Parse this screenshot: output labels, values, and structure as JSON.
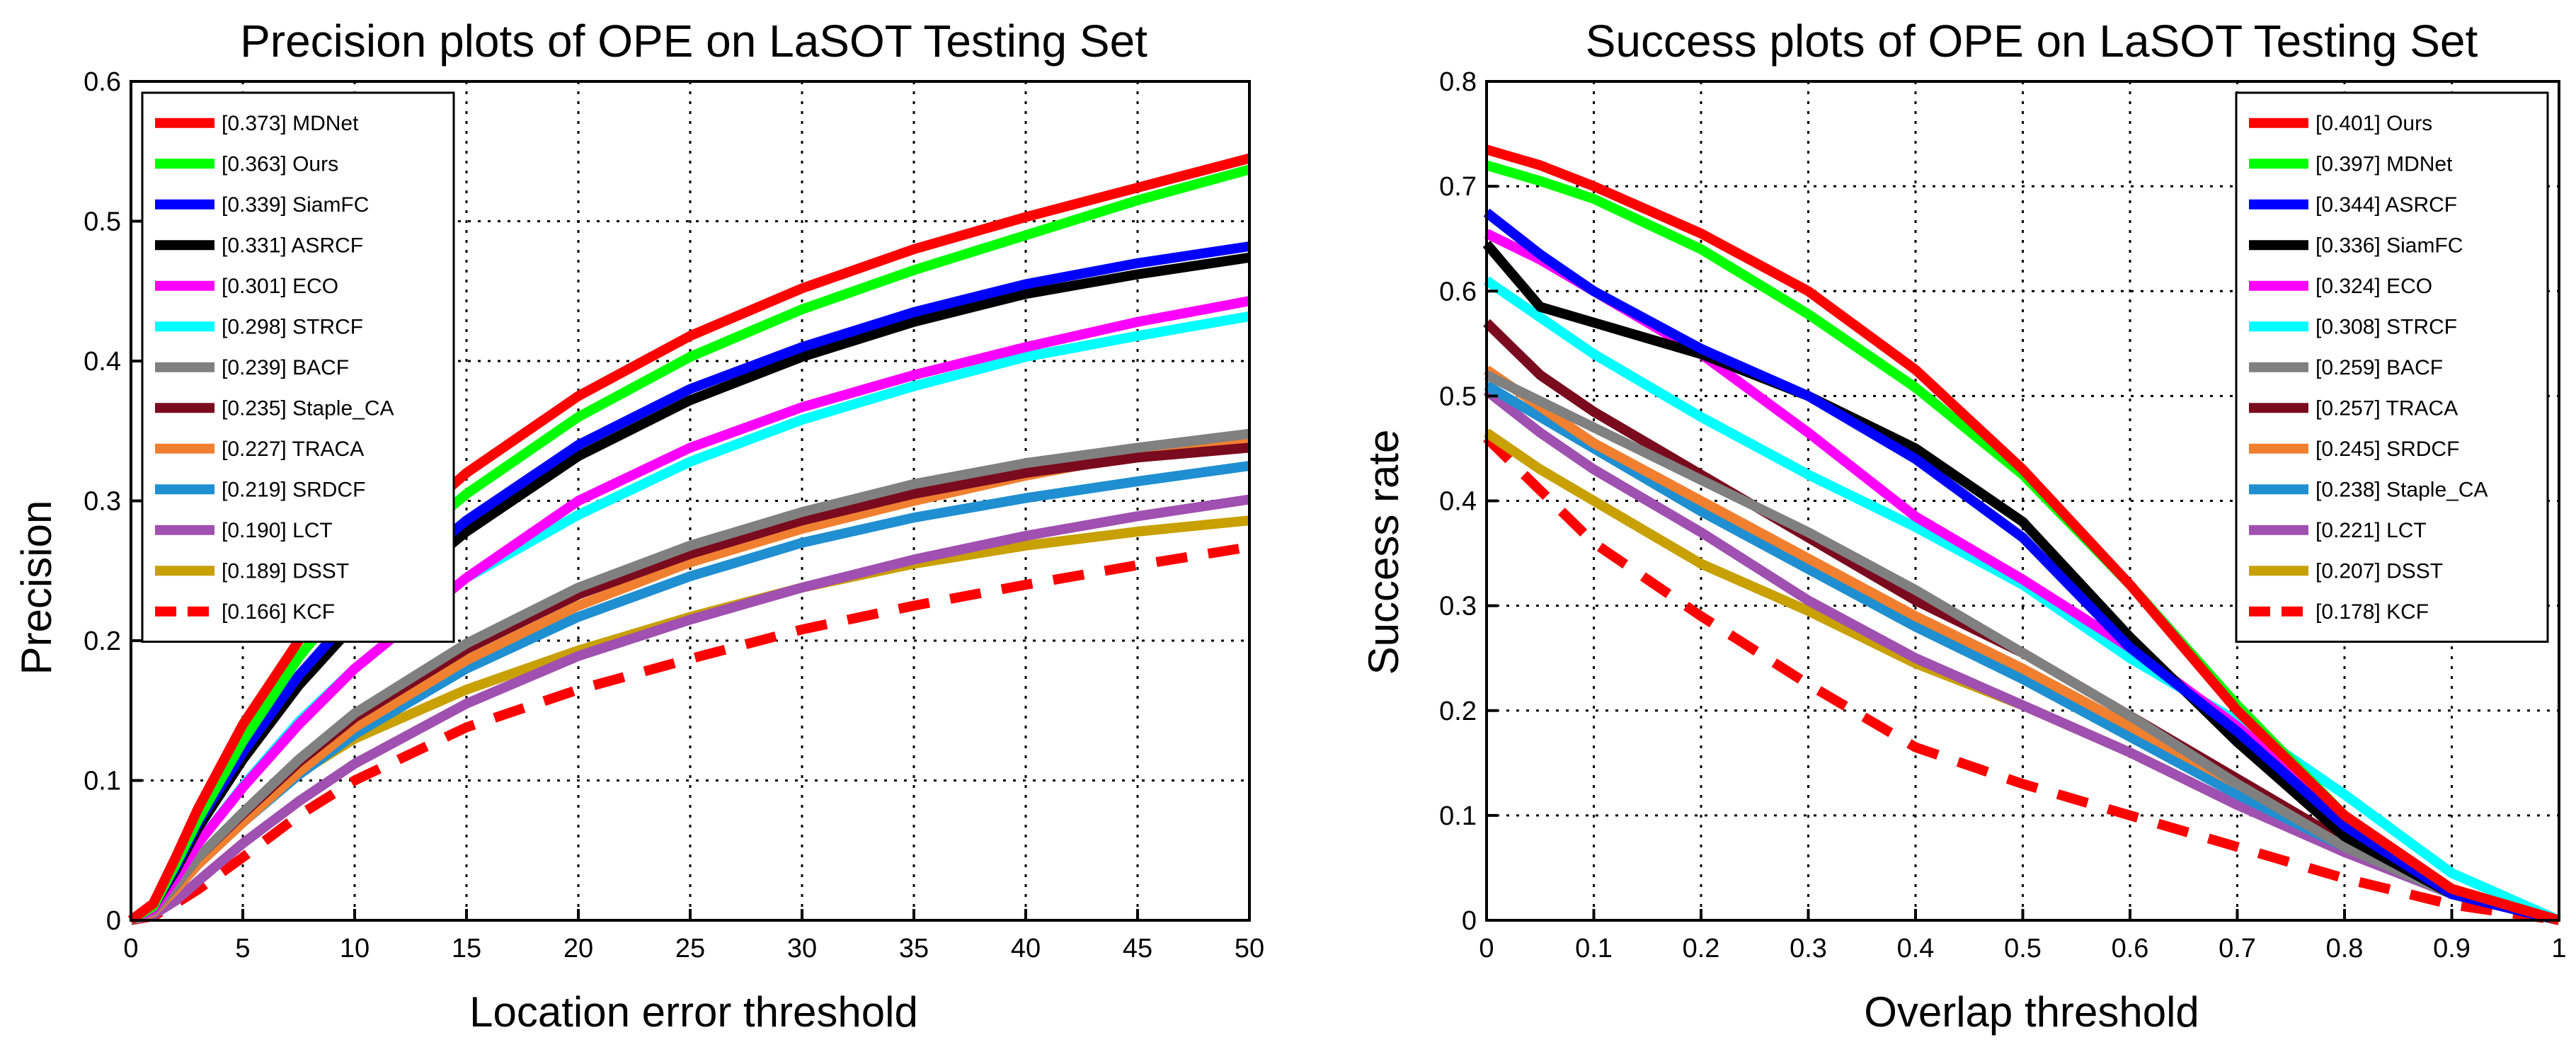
{
  "chart_data": [
    {
      "type": "line",
      "title": "Precision plots of OPE on LaSOT Testing Set",
      "xlabel": "Location error threshold",
      "ylabel": "Precision",
      "xlim": [
        0,
        50
      ],
      "ylim": [
        0,
        0.6
      ],
      "xticks": [
        "0",
        "5",
        "10",
        "15",
        "20",
        "25",
        "30",
        "35",
        "40",
        "45",
        "50"
      ],
      "yticks": [
        "0",
        "0.1",
        "0.2",
        "0.3",
        "0.4",
        "0.5",
        "0.6"
      ],
      "grid": true,
      "legend_position": "top-left",
      "x": [
        0,
        1,
        2,
        3,
        5,
        7.5,
        10,
        15,
        20,
        25,
        30,
        35,
        40,
        45,
        50
      ],
      "series": [
        {
          "name": "MDNet",
          "legend": "[0.373] MDNet",
          "color": "#ff0000",
          "dash": false,
          "values": [
            0,
            0.012,
            0.045,
            0.08,
            0.14,
            0.2,
            0.25,
            0.32,
            0.375,
            0.418,
            0.452,
            0.48,
            0.503,
            0.524,
            0.545
          ]
        },
        {
          "name": "Ours",
          "legend": "[0.363] Ours",
          "color": "#00ff00",
          "dash": false,
          "values": [
            0,
            0.01,
            0.04,
            0.072,
            0.128,
            0.188,
            0.238,
            0.305,
            0.36,
            0.403,
            0.437,
            0.465,
            0.49,
            0.515,
            0.537
          ]
        },
        {
          "name": "SiamFC",
          "legend": "[0.339] SiamFC",
          "color": "#0000ff",
          "dash": false,
          "values": [
            0,
            0.01,
            0.038,
            0.07,
            0.12,
            0.175,
            0.22,
            0.286,
            0.34,
            0.38,
            0.41,
            0.435,
            0.455,
            0.47,
            0.482
          ]
        },
        {
          "name": "ASRCF",
          "legend": "[0.331] ASRCF",
          "color": "#000000",
          "dash": false,
          "values": [
            0,
            0.01,
            0.036,
            0.066,
            0.115,
            0.168,
            0.212,
            0.278,
            0.332,
            0.372,
            0.403,
            0.428,
            0.448,
            0.462,
            0.474
          ]
        },
        {
          "name": "ECO",
          "legend": "[0.301] ECO",
          "color": "#ff00ff",
          "dash": false,
          "values": [
            0,
            0.008,
            0.03,
            0.055,
            0.095,
            0.14,
            0.18,
            0.245,
            0.3,
            0.338,
            0.367,
            0.39,
            0.41,
            0.428,
            0.443
          ]
        },
        {
          "name": "STRCF",
          "legend": "[0.298] STRCF",
          "color": "#00ffff",
          "dash": false,
          "values": [
            0,
            0.008,
            0.03,
            0.055,
            0.096,
            0.142,
            0.18,
            0.245,
            0.29,
            0.328,
            0.358,
            0.382,
            0.403,
            0.418,
            0.432
          ]
        },
        {
          "name": "BACF",
          "legend": "[0.239] BACF",
          "color": "#808080",
          "dash": false,
          "values": [
            0,
            0.007,
            0.025,
            0.045,
            0.077,
            0.115,
            0.148,
            0.198,
            0.238,
            0.268,
            0.292,
            0.312,
            0.327,
            0.338,
            0.348
          ]
        },
        {
          "name": "Staple_CA",
          "legend": "[0.235] Staple_CA",
          "color": "#7a0a1e",
          "dash": false,
          "values": [
            0,
            0.007,
            0.025,
            0.045,
            0.076,
            0.113,
            0.145,
            0.194,
            0.233,
            0.262,
            0.286,
            0.305,
            0.32,
            0.331,
            0.338
          ]
        },
        {
          "name": "TRACA",
          "legend": "[0.227] TRACA",
          "color": "#f08030",
          "dash": false,
          "values": [
            0,
            0.006,
            0.022,
            0.04,
            0.07,
            0.106,
            0.138,
            0.186,
            0.225,
            0.256,
            0.28,
            0.3,
            0.318,
            0.333,
            0.344
          ]
        },
        {
          "name": "SRDCF",
          "legend": "[0.219] SRDCF",
          "color": "#1f8fd1",
          "dash": false,
          "values": [
            0,
            0.006,
            0.022,
            0.04,
            0.07,
            0.104,
            0.133,
            0.18,
            0.217,
            0.246,
            0.27,
            0.288,
            0.302,
            0.314,
            0.325
          ]
        },
        {
          "name": "LCT",
          "legend": "[0.190] LCT",
          "color": "#a050b0",
          "dash": false,
          "values": [
            0,
            0.004,
            0.014,
            0.028,
            0.055,
            0.085,
            0.112,
            0.155,
            0.189,
            0.215,
            0.238,
            0.258,
            0.275,
            0.289,
            0.301
          ]
        },
        {
          "name": "DSST",
          "legend": "[0.189] DSST",
          "color": "#c8a000",
          "dash": false,
          "values": [
            0,
            0.007,
            0.025,
            0.045,
            0.075,
            0.105,
            0.13,
            0.165,
            0.193,
            0.217,
            0.238,
            0.255,
            0.268,
            0.278,
            0.286
          ]
        },
        {
          "name": "KCF",
          "legend": "[0.166] KCF",
          "color": "#ff0000",
          "dash": true,
          "values": [
            0,
            0.003,
            0.012,
            0.022,
            0.045,
            0.075,
            0.1,
            0.138,
            0.165,
            0.187,
            0.208,
            0.225,
            0.24,
            0.254,
            0.267
          ]
        }
      ]
    },
    {
      "type": "line",
      "title": "Success plots of OPE on LaSOT Testing Set",
      "xlabel": "Overlap threshold",
      "ylabel": "Success rate",
      "xlim": [
        0,
        1
      ],
      "ylim": [
        0,
        0.8
      ],
      "xticks": [
        "0",
        "0.1",
        "0.2",
        "0.3",
        "0.4",
        "0.5",
        "0.6",
        "0.7",
        "0.8",
        "0.9",
        "1"
      ],
      "yticks": [
        "0",
        "0.1",
        "0.2",
        "0.3",
        "0.4",
        "0.5",
        "0.6",
        "0.7",
        "0.8"
      ],
      "grid": true,
      "legend_position": "top-right",
      "x": [
        0,
        0.05,
        0.1,
        0.2,
        0.3,
        0.4,
        0.5,
        0.6,
        0.7,
        0.8,
        0.9,
        1.0
      ],
      "series": [
        {
          "name": "Ours",
          "legend": "[0.401] Ours",
          "color": "#ff0000",
          "dash": false,
          "values": [
            0.735,
            0.72,
            0.7,
            0.655,
            0.6,
            0.525,
            0.43,
            0.32,
            0.2,
            0.1,
            0.03,
            0
          ]
        },
        {
          "name": "MDNet",
          "legend": "[0.397] MDNet",
          "color": "#00ff00",
          "dash": false,
          "values": [
            0.72,
            0.705,
            0.688,
            0.64,
            0.578,
            0.508,
            0.425,
            0.32,
            0.205,
            0.1,
            0.03,
            0
          ]
        },
        {
          "name": "ASRCF",
          "legend": "[0.344] ASRCF",
          "color": "#0000ff",
          "dash": false,
          "values": [
            0.675,
            0.635,
            0.6,
            0.545,
            0.5,
            0.44,
            0.365,
            0.26,
            0.18,
            0.09,
            0.025,
            0
          ]
        },
        {
          "name": "SiamFC",
          "legend": "[0.336] SiamFC",
          "color": "#000000",
          "dash": false,
          "values": [
            0.645,
            0.585,
            0.57,
            0.54,
            0.5,
            0.45,
            0.38,
            0.27,
            0.17,
            0.08,
            0.025,
            0
          ]
        },
        {
          "name": "ECO",
          "legend": "[0.324] ECO",
          "color": "#ff00ff",
          "dash": false,
          "values": [
            0.655,
            0.63,
            0.6,
            0.54,
            0.465,
            0.385,
            0.325,
            0.26,
            0.185,
            0.1,
            0.03,
            0
          ]
        },
        {
          "name": "STRCF",
          "legend": "[0.308] STRCF",
          "color": "#00ffff",
          "dash": false,
          "values": [
            0.61,
            0.575,
            0.54,
            0.48,
            0.425,
            0.375,
            0.32,
            0.25,
            0.19,
            0.12,
            0.045,
            0
          ]
        },
        {
          "name": "BACF",
          "legend": "[0.259] BACF",
          "color": "#808080",
          "dash": false,
          "values": [
            0.52,
            0.495,
            0.47,
            0.42,
            0.37,
            0.315,
            0.255,
            0.195,
            0.13,
            0.07,
            0.025,
            0
          ]
        },
        {
          "name": "TRACA",
          "legend": "[0.257] TRACA",
          "color": "#7a0a1e",
          "dash": false,
          "values": [
            0.57,
            0.52,
            0.485,
            0.425,
            0.365,
            0.305,
            0.255,
            0.195,
            0.135,
            0.075,
            0.025,
            0
          ]
        },
        {
          "name": "SRDCF",
          "legend": "[0.245] SRDCF",
          "color": "#f08030",
          "dash": false,
          "values": [
            0.525,
            0.49,
            0.455,
            0.4,
            0.345,
            0.29,
            0.24,
            0.185,
            0.13,
            0.075,
            0.03,
            0
          ]
        },
        {
          "name": "Staple_CA",
          "legend": "[0.238] Staple_CA",
          "color": "#1f8fd1",
          "dash": false,
          "values": [
            0.51,
            0.48,
            0.45,
            0.39,
            0.335,
            0.28,
            0.23,
            0.175,
            0.12,
            0.07,
            0.025,
            0
          ]
        },
        {
          "name": "LCT",
          "legend": "[0.221] LCT",
          "color": "#a050b0",
          "dash": false,
          "values": [
            0.505,
            0.465,
            0.43,
            0.37,
            0.305,
            0.25,
            0.205,
            0.16,
            0.11,
            0.065,
            0.025,
            0
          ]
        },
        {
          "name": "DSST",
          "legend": "[0.207] DSST",
          "color": "#c8a000",
          "dash": false,
          "values": [
            0.465,
            0.43,
            0.4,
            0.34,
            0.295,
            0.245,
            0.205,
            0.16,
            0.11,
            0.07,
            0.03,
            0
          ]
        },
        {
          "name": "KCF",
          "legend": "[0.178] KCF",
          "color": "#ff0000",
          "dash": true,
          "values": [
            0.46,
            0.41,
            0.36,
            0.29,
            0.225,
            0.165,
            0.13,
            0.1,
            0.07,
            0.04,
            0.015,
            0
          ]
        }
      ]
    }
  ]
}
